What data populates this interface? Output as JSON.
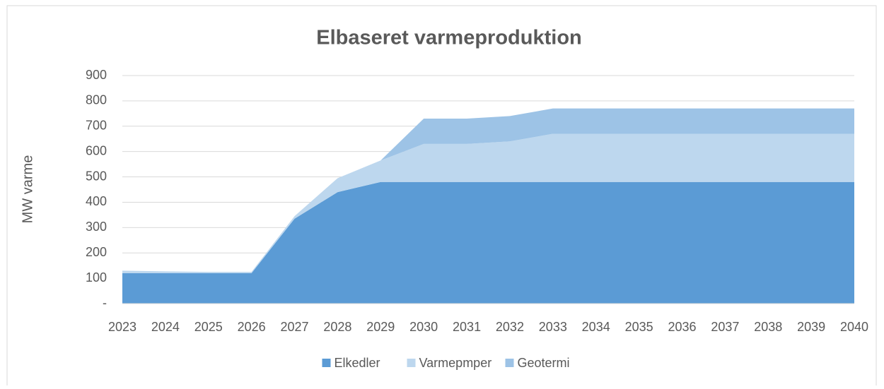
{
  "chart_data": {
    "type": "stacked_area",
    "title": "Elbaseret varmeproduktion",
    "y_label": "MW varme",
    "categories": [
      "2023",
      "2024",
      "2025",
      "2026",
      "2027",
      "2028",
      "2029",
      "2030",
      "2031",
      "2032",
      "2033",
      "2034",
      "2035",
      "2036",
      "2037",
      "2038",
      "2039",
      "2040"
    ],
    "series": [
      {
        "name": "Elkedler",
        "color": "#5b9bd5",
        "values": [
          120,
          120,
          120,
          120,
          335,
          440,
          480,
          480,
          480,
          480,
          480,
          480,
          480,
          480,
          480,
          480,
          480,
          480
        ]
      },
      {
        "name": "Varmepmper",
        "color": "#bdd7ee",
        "values": [
          10,
          7,
          5,
          5,
          10,
          55,
          85,
          150,
          150,
          160,
          190,
          190,
          190,
          190,
          190,
          190,
          190,
          190
        ]
      },
      {
        "name": "Geotermi",
        "color": "#9dc3e6",
        "values": [
          0,
          0,
          0,
          0,
          0,
          0,
          0,
          100,
          100,
          100,
          100,
          100,
          100,
          100,
          100,
          100,
          100,
          100
        ]
      }
    ],
    "ylim": [
      0,
      900
    ],
    "yticks": [
      {
        "value": 0,
        "label": "-"
      },
      100,
      200,
      300,
      400,
      500,
      600,
      700,
      800,
      900
    ],
    "grid": true,
    "legend": "bottom"
  }
}
